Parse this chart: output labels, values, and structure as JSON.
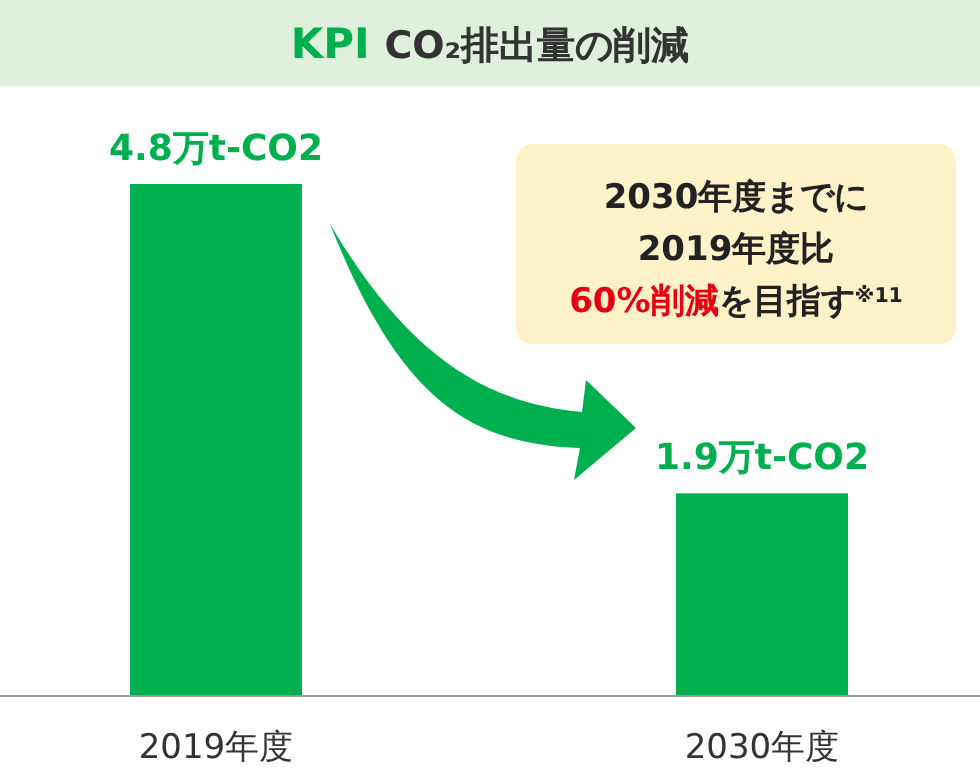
{
  "chart_data": {
    "type": "bar",
    "title": "KPI",
    "subtitle": "CO₂排出量の削減",
    "categories": [
      "2019年度",
      "2030年度"
    ],
    "values": [
      4.8,
      1.9
    ],
    "value_labels": [
      "4.8万t-CO2",
      "1.9万t-CO2"
    ],
    "color": "#00b04f",
    "annotations": [
      "2030年度までに",
      "2019年度比",
      "60%削減",
      "を目指す$^{※11}$"
    ]
  }
}
